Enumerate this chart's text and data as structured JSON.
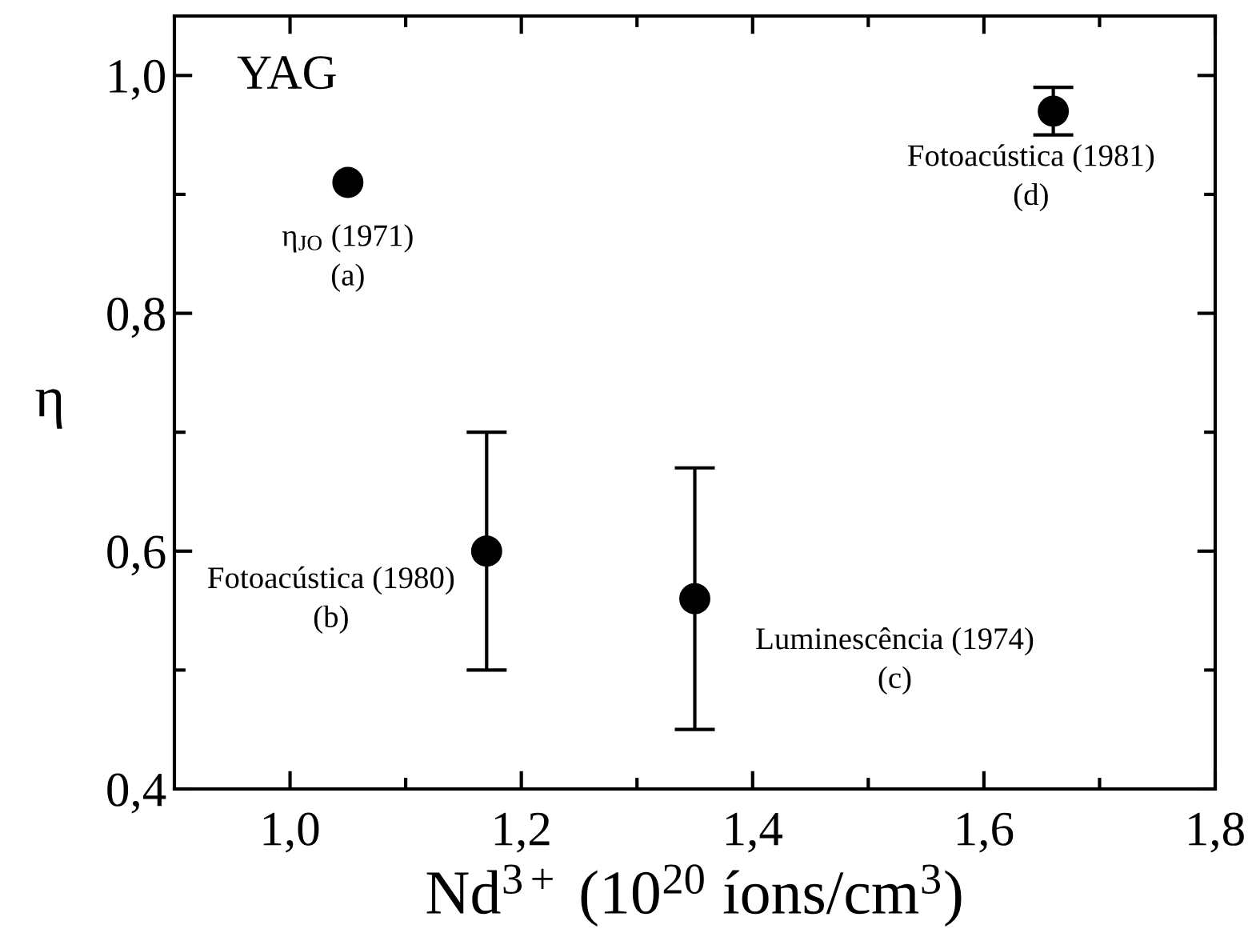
{
  "chart_data": {
    "type": "scatter",
    "xlabel": "Nd$^{3+}$ (10$^{20}$ íons/cm$^{3}$)",
    "ylabel": "η",
    "x": [
      1.05,
      1.17,
      1.35,
      1.66
    ],
    "series": [
      {
        "color": "#000000",
        "values": [
          0.91,
          0.6,
          0.56,
          0.97
        ],
        "errors": [
          null,
          [
            0.5,
            0.7
          ],
          [
            0.45,
            0.67
          ],
          [
            0.95,
            0.99
          ]
        ]
      }
    ],
    "marker": "circle",
    "xlim": [
      0.9,
      1.8
    ],
    "ylim": [
      0.4,
      1.05
    ],
    "xticks": [
      {
        "value": 1.0,
        "label": "1,0"
      },
      {
        "value": 1.1,
        "label": null
      },
      {
        "value": 1.2,
        "label": "1,2"
      },
      {
        "value": 1.3,
        "label": null
      },
      {
        "value": 1.4,
        "label": "1,4"
      },
      {
        "value": 1.5,
        "label": null
      },
      {
        "value": 1.6,
        "label": "1,6"
      },
      {
        "value": 1.7,
        "label": null
      },
      {
        "value": 1.8,
        "label": "1,8"
      }
    ],
    "yticks": [
      {
        "value": 0.4,
        "label": "0,4"
      },
      {
        "value": 0.5,
        "label": null
      },
      {
        "value": 0.6,
        "label": "0,6"
      },
      {
        "value": 0.7,
        "label": null
      },
      {
        "value": 0.8,
        "label": "0,8"
      },
      {
        "value": 0.9,
        "label": null
      },
      {
        "value": 1.0,
        "label": "1,0"
      }
    ],
    "annotations": [
      "YAG",
      {
        "text": "η$_{JO}$ (1971)\n(a)",
        "x": 1.05,
        "y": 0.91
      },
      {
        "text": "Fotoacústica (1980)\n(b)",
        "x": 1.17,
        "y": 0.6
      },
      {
        "text": "Luminescência (1974)\n(c)",
        "x": 1.35,
        "y": 0.56
      },
      {
        "text": "Fotoacústica (1981)\n(d)",
        "x": 1.66,
        "y": 0.97
      }
    ],
    "grid": false,
    "legend": false
  }
}
